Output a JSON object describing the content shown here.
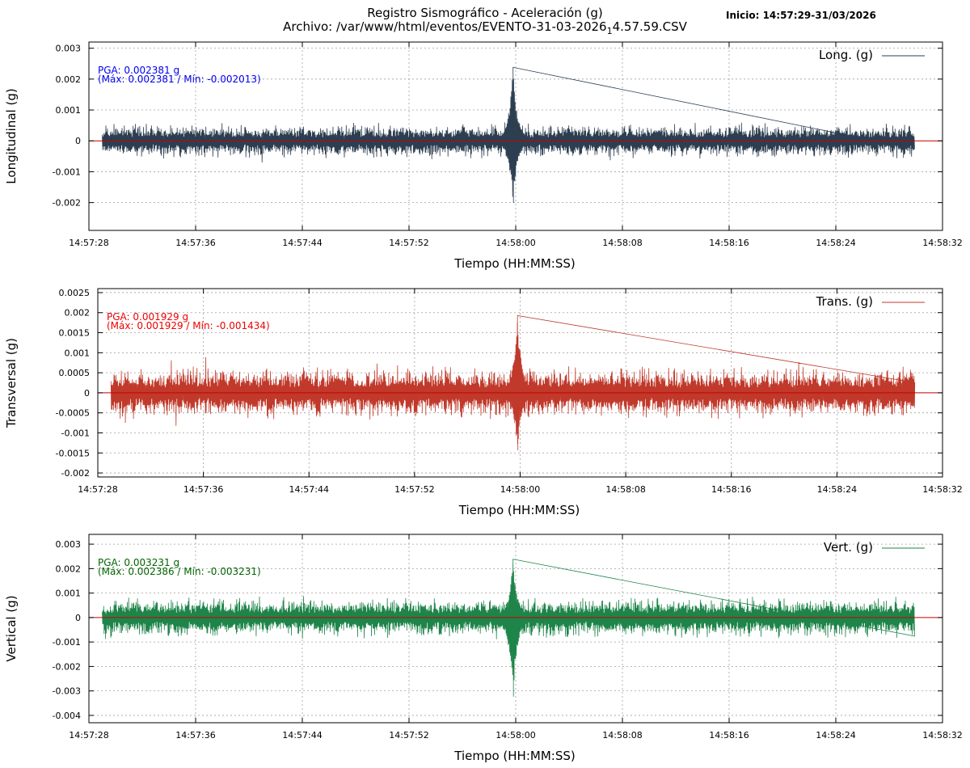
{
  "header": {
    "title_line1": "Registro Sismográfico - Aceleración (g)",
    "title_line2_prefix": "Archivo: /var/www/html/eventos/EVENTO-31-03-2026",
    "title_line2_sub": "1",
    "title_line2_suffix": "4.57.59.CSV",
    "start_info": "Inicio: 14:57:29-31/03/2026"
  },
  "colors": {
    "zero_line": "#cc0000",
    "grid": "#a0a0a0"
  },
  "chart_data": [
    {
      "type": "line",
      "xlabel": "Tiempo (HH:MM:SS)",
      "ylabel": "Longitudinal (g)",
      "legend": "Long. (g)",
      "legend_position": "top-right",
      "color": "#2c3e50",
      "pga_text": "PGA: 0.002381 g",
      "maxmin_text": "(Máx: 0.002381 / Mín: -0.002013)",
      "annotation_color": "#0000ee",
      "x_ticks": [
        "14:57:28",
        "14:57:36",
        "14:57:44",
        "14:57:52",
        "14:58:00",
        "14:58:08",
        "14:58:16",
        "14:58:24",
        "14:58:32"
      ],
      "x_range": [
        "14:57:28",
        "14:58:32"
      ],
      "data_range": [
        "14:57:29",
        "14:58:29.9"
      ],
      "y_ticks": [
        "0.003",
        "0.002",
        "0.001",
        "0",
        "-0.001",
        "-0.002"
      ],
      "y_tick_values": [
        0.003,
        0.002,
        0.001,
        0,
        -0.001,
        -0.002
      ],
      "ylim": [
        -0.0029,
        0.0032
      ],
      "max": 0.002381,
      "min": -0.002013,
      "max_time": "14:57:59.8",
      "baseline_amplitude": 0.0006,
      "grid": true
    },
    {
      "type": "line",
      "xlabel": "Tiempo (HH:MM:SS)",
      "ylabel": "Transversal (g)",
      "legend": "Trans. (g)",
      "legend_position": "top-right",
      "color": "#c0392b",
      "pga_text": "PGA: 0.001929 g",
      "maxmin_text": "(Máx: 0.001929 / Mín: -0.001434)",
      "annotation_color": "#ee0000",
      "x_ticks": [
        "14:57:28",
        "14:57:36",
        "14:57:44",
        "14:57:52",
        "14:58:00",
        "14:58:08",
        "14:58:16",
        "14:58:24",
        "14:58:32"
      ],
      "x_range": [
        "14:57:28",
        "14:58:32"
      ],
      "data_range": [
        "14:57:29",
        "14:58:29.9"
      ],
      "y_ticks": [
        "0.0025",
        "0.002",
        "0.0015",
        "0.001",
        "0.0005",
        "0",
        "-0.0005",
        "-0.001",
        "-0.0015",
        "-0.002"
      ],
      "y_tick_values": [
        0.0025,
        0.002,
        0.0015,
        0.001,
        0.0005,
        0,
        -0.0005,
        -0.001,
        -0.0015,
        -0.002
      ],
      "ylim": [
        -0.0021,
        0.0026
      ],
      "max": 0.001929,
      "min": -0.001434,
      "max_time": "14:57:59.8",
      "baseline_amplitude": 0.0007,
      "grid": true
    },
    {
      "type": "line",
      "xlabel": "Tiempo (HH:MM:SS)",
      "ylabel": "Vertical (g)",
      "legend": "Vert. (g)",
      "legend_position": "top-right",
      "color": "#1e8449",
      "pga_text": "PGA: 0.003231 g",
      "maxmin_text": "(Máx: 0.002386 / Mín: -0.003231)",
      "annotation_color": "#006400",
      "x_ticks": [
        "14:57:28",
        "14:57:36",
        "14:57:44",
        "14:57:52",
        "14:58:00",
        "14:58:08",
        "14:58:16",
        "14:58:24",
        "14:58:32"
      ],
      "x_range": [
        "14:57:28",
        "14:58:32"
      ],
      "data_range": [
        "14:57:29",
        "14:58:29.9"
      ],
      "y_ticks": [
        "0.003",
        "0.002",
        "0.001",
        "0",
        "-0.001",
        "-0.002",
        "-0.003",
        "-0.004"
      ],
      "y_tick_values": [
        0.003,
        0.002,
        0.001,
        0,
        -0.001,
        -0.002,
        -0.003,
        -0.004
      ],
      "ylim": [
        -0.0043,
        0.0034
      ],
      "max": 0.002386,
      "min": -0.003231,
      "max_time": "14:57:59.8",
      "baseline_amplitude": 0.0009,
      "grid": true
    }
  ]
}
